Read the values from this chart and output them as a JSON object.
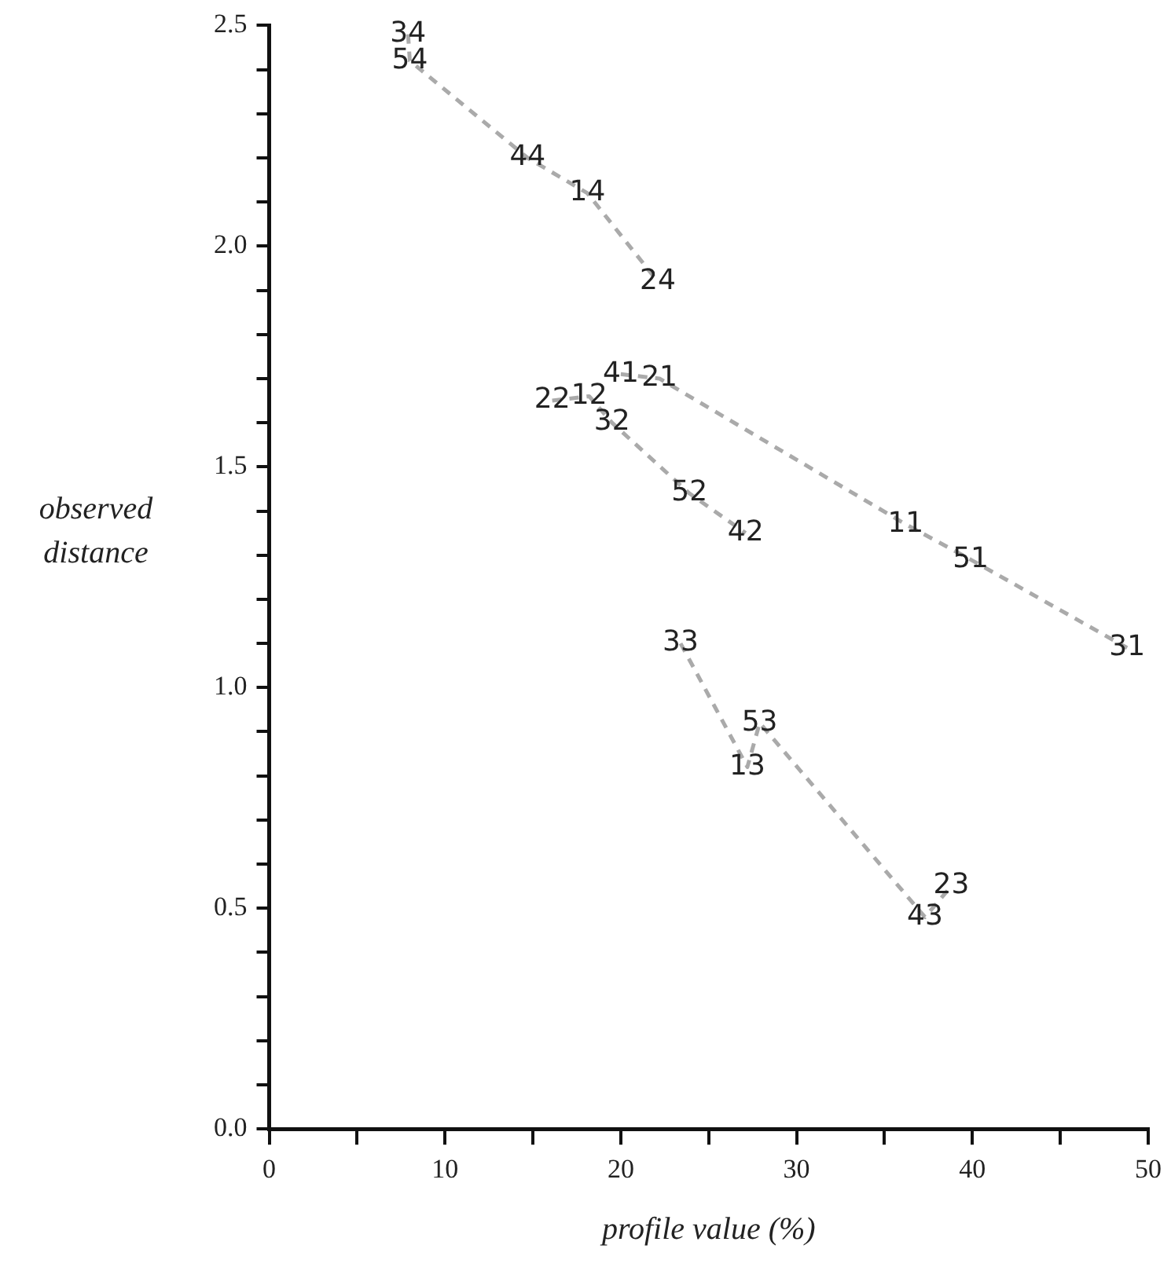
{
  "chart_data": {
    "type": "line",
    "xlabel": "profile value (%)",
    "ylabel": "observed distance",
    "xlim": [
      0,
      50
    ],
    "ylim": [
      0,
      2.5
    ],
    "xticks": [
      0,
      {
        "value": 5,
        "label": null
      },
      10,
      {
        "value": 15,
        "label": null
      },
      20,
      {
        "value": 25,
        "label": null
      },
      30,
      {
        "value": 35,
        "label": null
      },
      40,
      {
        "value": 45,
        "label": null
      },
      50
    ],
    "yticks": [
      {
        "value": 0,
        "label": "0.0"
      },
      {
        "value": 0.1,
        "label": null
      },
      {
        "value": 0.2,
        "label": null
      },
      {
        "value": 0.3,
        "label": null
      },
      {
        "value": 0.4,
        "label": null
      },
      {
        "value": 0.5,
        "label": "0.5"
      },
      {
        "value": 0.6,
        "label": null
      },
      {
        "value": 0.7,
        "label": null
      },
      {
        "value": 0.8,
        "label": null
      },
      {
        "value": 0.9,
        "label": null
      },
      {
        "value": 1.0,
        "label": "1.0"
      },
      {
        "value": 1.1,
        "label": null
      },
      {
        "value": 1.2,
        "label": null
      },
      {
        "value": 1.3,
        "label": null
      },
      {
        "value": 1.4,
        "label": null
      },
      {
        "value": 1.5,
        "label": "1.5"
      },
      {
        "value": 1.6,
        "label": null
      },
      {
        "value": 1.7,
        "label": null
      },
      {
        "value": 1.8,
        "label": null
      },
      {
        "value": 1.9,
        "label": null
      },
      {
        "value": 2.0,
        "label": "2.0"
      },
      {
        "value": 2.1,
        "label": null
      },
      {
        "value": 2.2,
        "label": null
      },
      {
        "value": 2.3,
        "label": null
      },
      {
        "value": 2.4,
        "label": null
      },
      {
        "value": 2.5,
        "label": "2.5"
      }
    ],
    "grid": false,
    "legend": false,
    "marker": "none",
    "line_style": "dashed",
    "series": [
      {
        "color": "#aaaaaa",
        "x": [
          7.9,
          8.0,
          14.7,
          18.1,
          22.1
        ],
        "values": [
          2.48,
          2.42,
          2.2,
          2.12,
          1.92
        ]
      },
      {
        "color": "#aaaaaa",
        "x": [
          20.0,
          22.2,
          36.2,
          39.9,
          48.8
        ],
        "values": [
          1.71,
          1.7,
          1.37,
          1.29,
          1.09
        ]
      },
      {
        "color": "#aaaaaa",
        "x": [
          16.1,
          18.2,
          19.5,
          23.9,
          27.1
        ],
        "values": [
          1.65,
          1.66,
          1.6,
          1.44,
          1.35
        ]
      },
      {
        "color": "#aaaaaa",
        "x": [
          23.4,
          27.2,
          27.9,
          37.3,
          38.8
        ],
        "values": [
          1.1,
          0.82,
          0.92,
          0.48,
          0.55
        ]
      }
    ],
    "annotations": [
      {
        "text": "34",
        "x": 7.9,
        "y": 2.48
      },
      {
        "text": "54",
        "x": 8.0,
        "y": 2.42
      },
      {
        "text": "44",
        "x": 14.7,
        "y": 2.2
      },
      {
        "text": "14",
        "x": 18.1,
        "y": 2.12
      },
      {
        "text": "24",
        "x": 22.1,
        "y": 1.92
      },
      {
        "text": "41",
        "x": 20.0,
        "y": 1.71
      },
      {
        "text": "21",
        "x": 22.2,
        "y": 1.7
      },
      {
        "text": "11",
        "x": 36.2,
        "y": 1.37
      },
      {
        "text": "51",
        "x": 39.9,
        "y": 1.29
      },
      {
        "text": "31",
        "x": 48.8,
        "y": 1.09
      },
      {
        "text": "22",
        "x": 16.1,
        "y": 1.65
      },
      {
        "text": "12",
        "x": 18.2,
        "y": 1.66
      },
      {
        "text": "32",
        "x": 19.5,
        "y": 1.6
      },
      {
        "text": "52",
        "x": 23.9,
        "y": 1.44
      },
      {
        "text": "42",
        "x": 27.1,
        "y": 1.35
      },
      {
        "text": "33",
        "x": 23.4,
        "y": 1.1
      },
      {
        "text": "13",
        "x": 27.2,
        "y": 0.82
      },
      {
        "text": "53",
        "x": 27.9,
        "y": 0.92
      },
      {
        "text": "43",
        "x": 37.3,
        "y": 0.48
      },
      {
        "text": "23",
        "x": 38.8,
        "y": 0.55
      }
    ]
  }
}
